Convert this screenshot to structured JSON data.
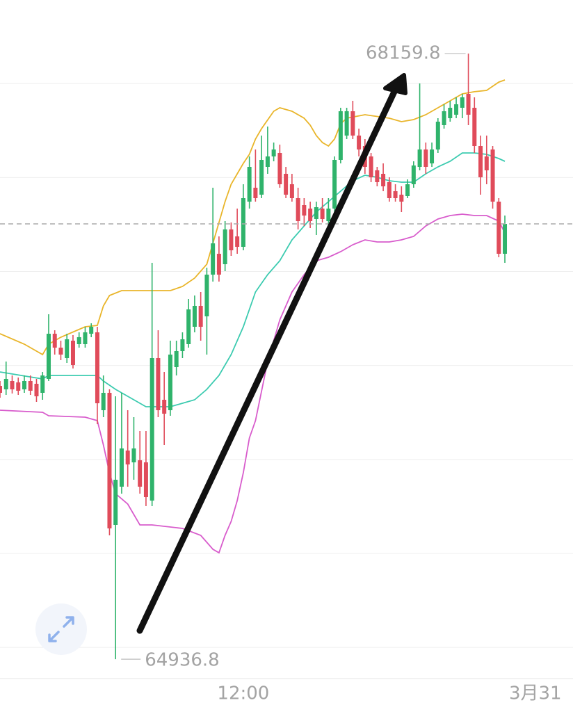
{
  "chart_data": {
    "type": "candlestick",
    "up_color": "#2fb36b",
    "down_color": "#e04b5a",
    "xlim": [
      0,
      94.2
    ],
    "xticks": [
      {
        "value": 40,
        "label": "12:00"
      },
      {
        "value": 88,
        "label": "3月31"
      }
    ],
    "ylim": [
      64837.5,
      68445
    ],
    "ygrid": [
      65000,
      65500,
      66000,
      66500,
      67000,
      67500,
      68000
    ],
    "open": [
      66391.5,
      66373,
      66417.4,
      66410,
      66373,
      66417.4,
      66402.6,
      66354.5,
      66428.5,
      66669,
      66595,
      66539.5,
      66632,
      66613.5,
      66613.5,
      66669,
      66676.4,
      66262,
      66354.5,
      65651.5,
      65855,
      66047.4,
      65984.5,
      65995.6,
      65984.5,
      65781,
      66539.5,
      66317.5,
      66262,
      66491.4,
      66576.5,
      66613.5,
      66706,
      66817,
      66761.5,
      66983.5,
      67094.5,
      67039,
      67224,
      67187,
      67131.5,
      67372,
      67446,
      67409,
      67557,
      67612.5,
      67631,
      67520,
      67464.5,
      67390.5,
      67353.5,
      67335,
      67279.5,
      67335,
      67268.4,
      67335,
      67594,
      67723.5,
      67853,
      67723.5,
      67668,
      67612.5,
      67538.5,
      67520,
      67475.6,
      67427.5,
      67409,
      67401.6,
      67464.5,
      67557,
      67649.5,
      67575.5,
      67649.5,
      67779,
      67816,
      67834.5,
      67871.5,
      67945.5,
      67871.5,
      67668,
      67612.5,
      67649.5,
      67372,
      67094.5
    ],
    "high": [
      66417.4,
      66521,
      66447,
      66435.9,
      66447,
      66447,
      66428.5,
      66465.5,
      66772.6,
      66687.5,
      66632,
      66669,
      66661.6,
      66676.4,
      66706,
      66724.5,
      66706,
      66447,
      66373,
      66336,
      66354.5,
      66262,
      66225,
      66151,
      66151,
      67046.4,
      66687.5,
      66465.5,
      66632,
      66632,
      66676.4,
      66854,
      66872.5,
      66891,
      67020.5,
      67446,
      67187,
      67268.4,
      67261,
      67335,
      67464.5,
      67612.5,
      67649.5,
      67723.5,
      67771.6,
      67686.5,
      67675.4,
      67557,
      67520,
      67446,
      67390.5,
      67372,
      67372,
      67390.5,
      67390.5,
      67612.5,
      67871.5,
      67871.5,
      67908.5,
      67760.5,
      67705,
      67631,
      67557,
      67575.5,
      67501.5,
      67464.5,
      67453.4,
      67490.4,
      67586.6,
      68001,
      67686.5,
      67686.5,
      67816,
      67890,
      67908.5,
      67927,
      67945.5,
      68159.8,
      67927,
      67723.5,
      67723.5,
      67668,
      67390.5,
      67298
    ],
    "low": [
      66328.6,
      66343.4,
      66350.8,
      66343.4,
      66354.5,
      66343.4,
      66306.4,
      66317.5,
      66417.4,
      66558,
      66528.4,
      66513.6,
      66484,
      66595,
      66595,
      66650.5,
      66188,
      66225,
      65596,
      64936.8,
      65818,
      65855,
      65892,
      65818,
      65751.6,
      65751.6,
      66225,
      66077,
      66232.4,
      66447,
      66539.5,
      66595,
      66676.4,
      66632,
      66558,
      66946.5,
      66946.5,
      67002,
      67083.4,
      67094.5,
      67113,
      67335,
      67372,
      67390.5,
      67520,
      67586.6,
      67446,
      67390.5,
      67372,
      67224,
      67242.5,
      67231.4,
      67194.4,
      67261,
      67242.5,
      67298,
      67575.5,
      67705,
      67705,
      67612.5,
      67520,
      67475.6,
      67453.4,
      67427.5,
      67372,
      67372,
      67316.5,
      67390.5,
      67446,
      67538.5,
      67520,
      67557,
      67631,
      67760.5,
      67797.5,
      67816,
      67816,
      67779,
      67631,
      67409,
      67464.5,
      67335,
      67076,
      67046.4
    ],
    "close": [
      66354.5,
      66428.5,
      66373,
      66365.6,
      66417.4,
      66365.6,
      66336,
      66447,
      66669,
      66595,
      66558,
      66639.4,
      66502.5,
      66650.5,
      66676.4,
      66706,
      66299,
      66354.5,
      65633,
      65892,
      66058.5,
      65973.4,
      66058.5,
      65855,
      65799.5,
      66539.5,
      66262,
      66243.5,
      66558,
      66576.5,
      66639.4,
      66798.5,
      66817,
      66706,
      66983.5,
      67150,
      66983.5,
      67224,
      67113,
      67131.5,
      67390.5,
      67557,
      67390.5,
      67594,
      67612.5,
      67649.5,
      67464.5,
      67409,
      67390.5,
      67268.4,
      67298,
      67268.4,
      67342.4,
      67279.5,
      67335,
      67594,
      67853,
      67853,
      67723.5,
      67649.5,
      67557,
      67501.5,
      67475.6,
      67453.4,
      67390.5,
      67390.5,
      67372,
      67464.5,
      67564.4,
      67649.5,
      67557,
      67649.5,
      67797.5,
      67853,
      67871.5,
      67890,
      67927,
      67834.5,
      67668,
      67501.5,
      67538.5,
      67372,
      67094.5,
      67253.6
    ],
    "bands": [
      {
        "color": "#e9b52a",
        "x": [
          0,
          4,
          7,
          8,
          10,
          14,
          16,
          17,
          18,
          20,
          28,
          30,
          32,
          34,
          35,
          36,
          37,
          38,
          39,
          40,
          41,
          42,
          43,
          45,
          46,
          48,
          50,
          51,
          52,
          53,
          54,
          55,
          56,
          57,
          60,
          64,
          66,
          68,
          70,
          72,
          74,
          76,
          78,
          80,
          82,
          83
        ],
        "values": [
          66669,
          66613.5,
          66558,
          66613.5,
          66650.5,
          66706,
          66713.4,
          66817,
          66872.5,
          66898.4,
          66898.4,
          66920.6,
          66965,
          67039,
          67150,
          67261,
          67372,
          67464.5,
          67520,
          67575.5,
          67623.6,
          67705,
          67760.5,
          67853,
          67871.5,
          67853,
          67816,
          67779,
          67723.5,
          67686.5,
          67668,
          67705,
          67786.4,
          67816,
          67834.5,
          67816,
          67797.5,
          67808.6,
          67834.5,
          67871.5,
          67908.5,
          67945.5,
          67957,
          67964,
          68008,
          68019.5
        ]
      },
      {
        "color": "#3ccbb0",
        "x": [
          0,
          7,
          8,
          16,
          17,
          19,
          22,
          24,
          28,
          30,
          32,
          34,
          36,
          38,
          40,
          42,
          44,
          46,
          48,
          50,
          52,
          54,
          56,
          58,
          60,
          62,
          64,
          66,
          68,
          70,
          72,
          74,
          76,
          78,
          80,
          82,
          83
        ],
        "values": [
          66465.5,
          66428.5,
          66447,
          66447,
          66417.4,
          66373,
          66317.5,
          66280.5,
          66280.5,
          66299,
          66317.5,
          66373,
          66447,
          66558,
          66706,
          66891,
          66983.5,
          67057.5,
          67168.5,
          67242.5,
          67316.5,
          67372,
          67427.5,
          67483,
          67512.6,
          67501.5,
          67483,
          67475.6,
          67475.6,
          67520,
          67557,
          67586.6,
          67631,
          67631,
          67623.6,
          67601.4,
          67586.6
        ]
      },
      {
        "color": "#d85ccc",
        "x": [
          0,
          7,
          8,
          14,
          16,
          17,
          18,
          19,
          21,
          23,
          25,
          30,
          33,
          35,
          36,
          37,
          38,
          39,
          40,
          41,
          42,
          44,
          46,
          48,
          50,
          52,
          54,
          56,
          58,
          60,
          62,
          64,
          66,
          68,
          70,
          72,
          74,
          76,
          78,
          80,
          82,
          83
        ],
        "values": [
          66262,
          66250.9,
          66232.4,
          66225,
          66206.5,
          66077,
          65929,
          65818,
          65762.5,
          65651.5,
          65651.5,
          65633,
          65596,
          65522,
          65503.5,
          65596,
          65670,
          65781,
          65929,
          66114,
          66206.5,
          66521,
          66743,
          66891,
          66983.5,
          67057.5,
          67076,
          67105.6,
          67142.6,
          67168.5,
          67157.4,
          67157.4,
          67168.5,
          67187,
          67242.5,
          67279.5,
          67298,
          67305.4,
          67298,
          67298,
          67268.4,
          67205.5
        ]
      }
    ]
  }
}
